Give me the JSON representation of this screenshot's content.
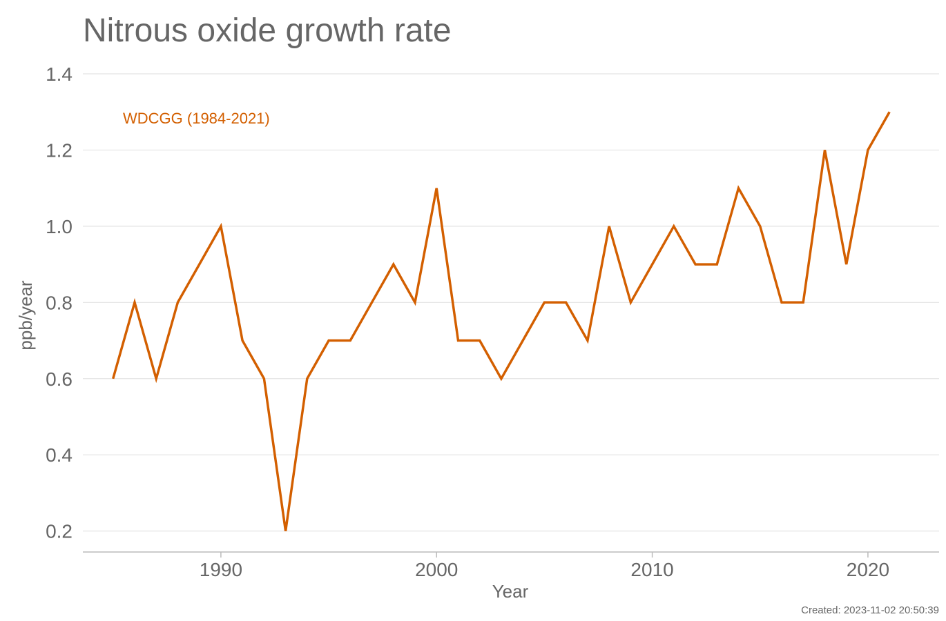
{
  "chart_data": {
    "type": "line",
    "title": "Nitrous oxide growth rate",
    "xlabel": "Year",
    "ylabel": "ppb/year",
    "xlim": [
      1983.6,
      2023.3
    ],
    "ylim": [
      0.145,
      1.4
    ],
    "x_ticks": [
      1990,
      2000,
      2010,
      2020
    ],
    "y_ticks": [
      0.2,
      0.4,
      0.6,
      0.8,
      1.0,
      1.2,
      1.4
    ],
    "y_tick_labels": [
      "0.2",
      "0.4",
      "0.6",
      "0.8",
      "1.0",
      "1.2",
      "1.4"
    ],
    "grid": "horizontal",
    "legend_position": "top-left",
    "series": [
      {
        "name": "WDCGG (1984-2021)",
        "color": "#d35f00",
        "x": [
          1985,
          1986,
          1987,
          1988,
          1989,
          1990,
          1991,
          1992,
          1993,
          1994,
          1995,
          1996,
          1997,
          1998,
          1999,
          2000,
          2001,
          2002,
          2003,
          2004,
          2005,
          2006,
          2007,
          2008,
          2009,
          2010,
          2011,
          2012,
          2013,
          2014,
          2015,
          2016,
          2017,
          2018,
          2019,
          2020,
          2021
        ],
        "values": [
          0.6,
          0.8,
          0.6,
          0.8,
          0.9,
          1.0,
          0.7,
          0.6,
          0.2,
          0.6,
          0.7,
          0.7,
          0.8,
          0.9,
          0.8,
          1.1,
          0.7,
          0.7,
          0.6,
          0.7,
          0.8,
          0.8,
          0.7,
          1.0,
          0.8,
          0.9,
          1.0,
          0.9,
          0.9,
          1.1,
          1.0,
          0.8,
          0.8,
          1.2,
          0.9,
          1.2,
          1.3
        ]
      }
    ]
  },
  "footer": {
    "created": "Created: 2023-11-02 20:50:39"
  }
}
